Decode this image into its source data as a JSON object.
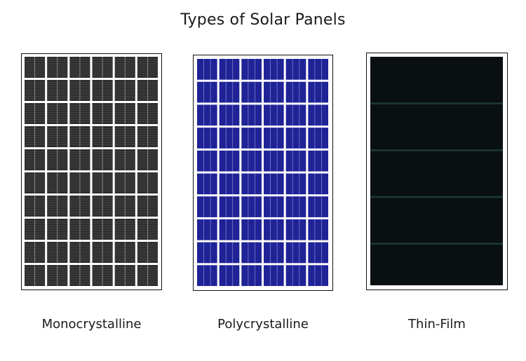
{
  "title": "Types of Solar Panels",
  "panels": [
    {
      "label": "Monocrystalline",
      "cell_color": "#2f2f2f",
      "rows": 10,
      "cols": 6
    },
    {
      "label": "Polycrystalline",
      "cell_color": "#1f2396",
      "rows": 10,
      "cols": 6
    },
    {
      "label": "Thin-Film",
      "cell_color": "#0a1012",
      "line_color": "#1e3a3a",
      "bands": 5
    }
  ]
}
